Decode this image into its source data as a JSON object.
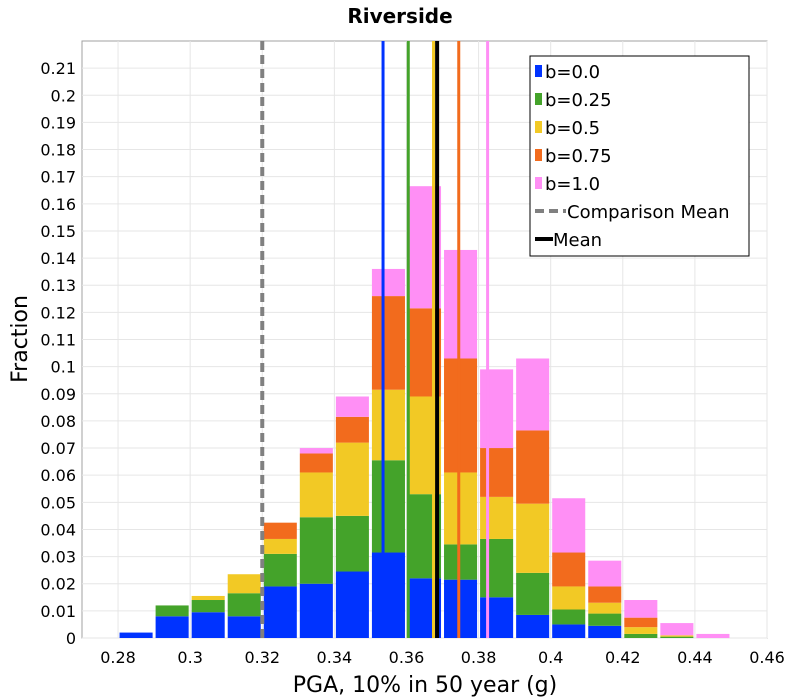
{
  "chart_data": {
    "type": "bar",
    "title": "Riverside",
    "xlabel": "PGA, 10% in 50 year (g)",
    "ylabel": "Fraction",
    "xlim": [
      0.27,
      0.46
    ],
    "ylim": [
      0,
      0.22
    ],
    "xticks": [
      "0.28",
      "0.3",
      "0.32",
      "0.34",
      "0.36",
      "0.38",
      "0.4",
      "0.42",
      "0.44",
      "0.46"
    ],
    "yticks": [
      "0",
      "0.01",
      "0.02",
      "0.03",
      "0.04",
      "0.05",
      "0.06",
      "0.07",
      "0.08",
      "0.09",
      "0.1",
      "0.11",
      "0.12",
      "0.13",
      "0.14",
      "0.15",
      "0.16",
      "0.17",
      "0.18",
      "0.19",
      "0.2",
      "0.21"
    ],
    "bin_width": 0.01,
    "grid": true,
    "stacked": true,
    "legend_position": "top-right",
    "bins": [
      0.285,
      0.295,
      0.305,
      0.315,
      0.325,
      0.335,
      0.345,
      0.355,
      0.365,
      0.375,
      0.385,
      0.395,
      0.405,
      0.415,
      0.425,
      0.435,
      0.445
    ],
    "series": [
      {
        "name": "b=0.0",
        "color": "#0033ff",
        "values": [
          0.002,
          0.008,
          0.0095,
          0.008,
          0.019,
          0.02,
          0.0245,
          0.0315,
          0.022,
          0.0215,
          0.015,
          0.0085,
          0.005,
          0.0045,
          0.0,
          0.0,
          0.0
        ]
      },
      {
        "name": "b=0.25",
        "color": "#44a32a",
        "values": [
          0.0,
          0.004,
          0.0045,
          0.0085,
          0.012,
          0.0245,
          0.0205,
          0.034,
          0.031,
          0.013,
          0.0215,
          0.0155,
          0.0055,
          0.0045,
          0.0015,
          0.0005,
          0.0
        ]
      },
      {
        "name": "b=0.5",
        "color": "#f2c925",
        "values": [
          0.0,
          0.0,
          0.0015,
          0.007,
          0.0055,
          0.0165,
          0.027,
          0.026,
          0.036,
          0.0265,
          0.0155,
          0.0255,
          0.0085,
          0.004,
          0.0025,
          0.0005,
          0.0
        ]
      },
      {
        "name": "b=0.75",
        "color": "#f26b1d",
        "values": [
          0.0,
          0.0,
          0.0,
          0.0,
          0.006,
          0.007,
          0.0095,
          0.0345,
          0.0325,
          0.042,
          0.018,
          0.027,
          0.0125,
          0.006,
          0.0035,
          0.0,
          0.0
        ]
      },
      {
        "name": "b=1.0",
        "color": "#ff8ff5",
        "values": [
          0.0,
          0.0,
          0.0,
          0.0,
          0.0,
          0.002,
          0.0075,
          0.01,
          0.045,
          0.04,
          0.029,
          0.0265,
          0.02,
          0.0095,
          0.0065,
          0.0045,
          0.0015
        ]
      }
    ],
    "vertical_lines": [
      {
        "name": "b=0.0",
        "x": 0.3535,
        "color": "#0033ff",
        "style": "solid"
      },
      {
        "name": "b=0.25",
        "x": 0.3605,
        "color": "#44a32a",
        "style": "solid"
      },
      {
        "name": "b=0.5",
        "x": 0.3675,
        "color": "#f2c925",
        "style": "solid"
      },
      {
        "name": "b=0.75",
        "x": 0.3745,
        "color": "#f26b1d",
        "style": "solid"
      },
      {
        "name": "b=1.0",
        "x": 0.3825,
        "color": "#ff8ff5",
        "style": "solid"
      },
      {
        "name": "Comparison Mean",
        "x": 0.32,
        "color": "#808080",
        "style": "dashed"
      },
      {
        "name": "Mean",
        "x": 0.3685,
        "color": "#000000",
        "style": "solid"
      }
    ],
    "legend": [
      {
        "label": "b=0.0",
        "color": "#0033ff",
        "kind": "box"
      },
      {
        "label": "b=0.25",
        "color": "#44a32a",
        "kind": "box"
      },
      {
        "label": "b=0.5",
        "color": "#f2c925",
        "kind": "box"
      },
      {
        "label": "b=0.75",
        "color": "#f26b1d",
        "kind": "box"
      },
      {
        "label": "b=1.0",
        "color": "#ff8ff5",
        "kind": "box"
      },
      {
        "label": "Comparison Mean",
        "color": "#808080",
        "kind": "dashed-line"
      },
      {
        "label": "Mean",
        "color": "#000000",
        "kind": "line"
      }
    ]
  }
}
